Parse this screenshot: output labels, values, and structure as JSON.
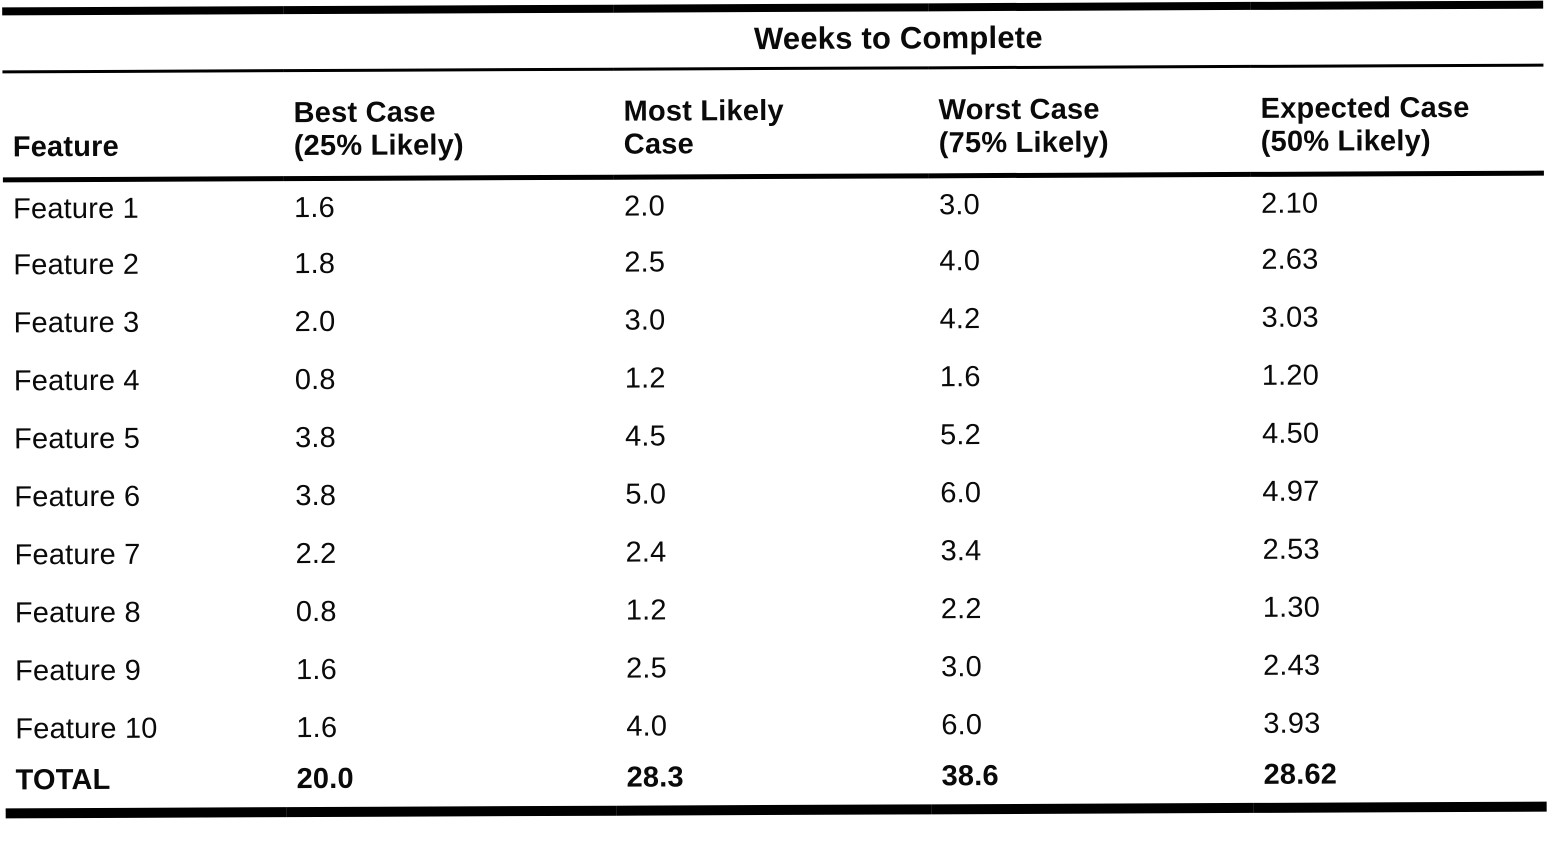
{
  "page": {
    "background_color": "#ffffff",
    "ink_color": "#0a0a0a"
  },
  "table": {
    "spanner_title": "Weeks to Complete",
    "headers": [
      [
        "Feature"
      ],
      [
        "Best Case",
        "(25% Likely)"
      ],
      [
        "Most Likely",
        "Case"
      ],
      [
        "Worst Case",
        "(75% Likely)"
      ],
      [
        "Expected Case",
        "(50% Likely)"
      ]
    ],
    "rows": [
      [
        "Feature 1",
        "1.6",
        "2.0",
        "3.0",
        "2.10"
      ],
      [
        "Feature 2",
        "1.8",
        "2.5",
        "4.0",
        "2.63"
      ],
      [
        "Feature 3",
        "2.0",
        "3.0",
        "4.2",
        "3.03"
      ],
      [
        "Feature 4",
        "0.8",
        "1.2",
        "1.6",
        "1.20"
      ],
      [
        "Feature 5",
        "3.8",
        "4.5",
        "5.2",
        "4.50"
      ],
      [
        "Feature 6",
        "3.8",
        "5.0",
        "6.0",
        "4.97"
      ],
      [
        "Feature 7",
        "2.2",
        "2.4",
        "3.4",
        "2.53"
      ],
      [
        "Feature 8",
        "0.8",
        "1.2",
        "2.2",
        "1.30"
      ],
      [
        "Feature 9",
        "1.6",
        "2.5",
        "3.0",
        "2.43"
      ],
      [
        "Feature 10",
        "1.6",
        "4.0",
        "6.0",
        "3.93"
      ]
    ],
    "total_row": [
      "TOTAL",
      "20.0",
      "28.3",
      "38.6",
      "28.62"
    ]
  }
}
